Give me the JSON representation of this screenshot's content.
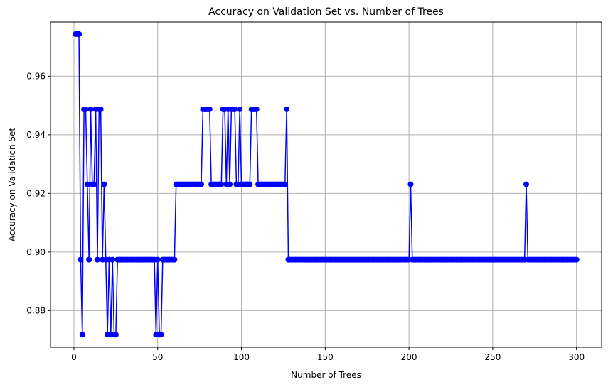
{
  "chart_data": {
    "type": "line",
    "title": "Accuracy on Validation Set vs. Number of Trees",
    "xlabel": "Number of Trees",
    "ylabel": "Accuracy on Validation Set",
    "xlim": [
      -14,
      315
    ],
    "ylim": [
      0.8675,
      0.9785
    ],
    "x_ticks": [
      0,
      50,
      100,
      150,
      200,
      250,
      300
    ],
    "y_ticks": [
      0.88,
      0.9,
      0.92,
      0.94,
      0.96
    ],
    "y_tick_labels": [
      "0.88",
      "0.90",
      "0.92",
      "0.94",
      "0.96"
    ],
    "grid": true,
    "legend": "none",
    "marker": "circle",
    "colors": {
      "series": "#0000ff",
      "grid": "#b0b0b0",
      "axes": "#000000"
    },
    "series": [
      {
        "x_start": 1,
        "x_step": 1,
        "values": [
          0.9744,
          0.9744,
          0.9744,
          0.8974,
          0.8718,
          0.9487,
          0.9487,
          0.9231,
          0.8974,
          0.9487,
          0.9231,
          0.9231,
          0.9487,
          0.8974,
          0.9487,
          0.9487,
          0.8974,
          0.9231,
          0.8974,
          0.8718,
          0.8974,
          0.8718,
          0.8974,
          0.8718,
          0.8718,
          0.8974,
          0.8974,
          0.8974,
          0.8974,
          0.8974,
          0.8974,
          0.8974,
          0.8974,
          0.8974,
          0.8974,
          0.8974,
          0.8974,
          0.8974,
          0.8974,
          0.8974,
          0.8974,
          0.8974,
          0.8974,
          0.8974,
          0.8974,
          0.8974,
          0.8974,
          0.8974,
          0.8718,
          0.8974,
          0.8718,
          0.8718,
          0.8974,
          0.8974,
          0.8974,
          0.8974,
          0.8974,
          0.8974,
          0.8974,
          0.8974,
          0.9231,
          0.9231,
          0.9231,
          0.9231,
          0.9231,
          0.9231,
          0.9231,
          0.9231,
          0.9231,
          0.9231,
          0.9231,
          0.9231,
          0.9231,
          0.9231,
          0.9231,
          0.9231,
          0.9487,
          0.9487,
          0.9487,
          0.9487,
          0.9487,
          0.9231,
          0.9231,
          0.9231,
          0.9231,
          0.9231,
          0.9231,
          0.9231,
          0.9487,
          0.9487,
          0.9231,
          0.9487,
          0.9231,
          0.9487,
          0.9487,
          0.9487,
          0.9231,
          0.9231,
          0.9487,
          0.9231,
          0.9231,
          0.9231,
          0.9231,
          0.9231,
          0.9231,
          0.9487,
          0.9487,
          0.9487,
          0.9487,
          0.9231,
          0.9231,
          0.9231,
          0.9231,
          0.9231,
          0.9231,
          0.9231,
          0.9231,
          0.9231,
          0.9231,
          0.9231,
          0.9231,
          0.9231,
          0.9231,
          0.9231,
          0.9231,
          0.9231,
          0.9487,
          0.8974,
          0.8974,
          0.8974,
          0.8974,
          0.8974,
          0.8974,
          0.8974,
          0.8974,
          0.8974,
          0.8974,
          0.8974,
          0.8974,
          0.8974,
          0.8974,
          0.8974,
          0.8974,
          0.8974,
          0.8974,
          0.8974,
          0.8974,
          0.8974,
          0.8974,
          0.8974,
          0.8974,
          0.8974,
          0.8974,
          0.8974,
          0.8974,
          0.8974,
          0.8974,
          0.8974,
          0.8974,
          0.8974,
          0.8974,
          0.8974,
          0.8974,
          0.8974,
          0.8974,
          0.8974,
          0.8974,
          0.8974,
          0.8974,
          0.8974,
          0.8974,
          0.8974,
          0.8974,
          0.8974,
          0.8974,
          0.8974,
          0.8974,
          0.8974,
          0.8974,
          0.8974,
          0.8974,
          0.8974,
          0.8974,
          0.8974,
          0.8974,
          0.8974,
          0.8974,
          0.8974,
          0.8974,
          0.8974,
          0.8974,
          0.8974,
          0.8974,
          0.8974,
          0.8974,
          0.8974,
          0.8974,
          0.8974,
          0.8974,
          0.8974,
          0.9231,
          0.8974,
          0.8974,
          0.8974,
          0.8974,
          0.8974,
          0.8974,
          0.8974,
          0.8974,
          0.8974,
          0.8974,
          0.8974,
          0.8974,
          0.8974,
          0.8974,
          0.8974,
          0.8974,
          0.8974,
          0.8974,
          0.8974,
          0.8974,
          0.8974,
          0.8974,
          0.8974,
          0.8974,
          0.8974,
          0.8974,
          0.8974,
          0.8974,
          0.8974,
          0.8974,
          0.8974,
          0.8974,
          0.8974,
          0.8974,
          0.8974,
          0.8974,
          0.8974,
          0.8974,
          0.8974,
          0.8974,
          0.8974,
          0.8974,
          0.8974,
          0.8974,
          0.8974,
          0.8974,
          0.8974,
          0.8974,
          0.8974,
          0.8974,
          0.8974,
          0.8974,
          0.8974,
          0.8974,
          0.8974,
          0.8974,
          0.8974,
          0.8974,
          0.8974,
          0.8974,
          0.8974,
          0.8974,
          0.8974,
          0.8974,
          0.8974,
          0.8974,
          0.8974,
          0.8974,
          0.9231,
          0.8974,
          0.8974,
          0.8974,
          0.8974,
          0.8974,
          0.8974,
          0.8974,
          0.8974,
          0.8974,
          0.8974,
          0.8974,
          0.8974,
          0.8974,
          0.8974,
          0.8974,
          0.8974,
          0.8974,
          0.8974,
          0.8974,
          0.8974,
          0.8974,
          0.8974,
          0.8974,
          0.8974,
          0.8974,
          0.8974,
          0.8974,
          0.8974,
          0.8974,
          0.8974
        ]
      }
    ]
  }
}
